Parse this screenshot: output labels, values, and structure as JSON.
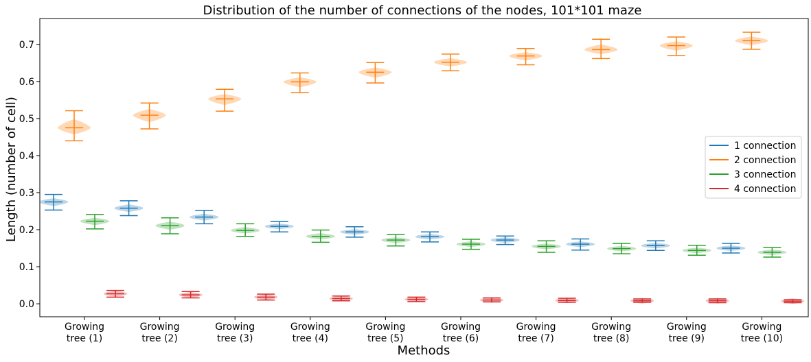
{
  "chart_data": {
    "type": "violin",
    "title": "Distribution of the number of connections of the nodes, 101*101 maze",
    "xlabel": "Methods",
    "ylabel": "Length (number of cell)",
    "ylim": [
      -0.035,
      0.77
    ],
    "yticks": [
      0.0,
      0.1,
      0.2,
      0.3,
      0.4,
      0.5,
      0.6,
      0.7
    ],
    "categories": [
      [
        "Growing",
        "tree (1)"
      ],
      [
        "Growing",
        "tree (2)"
      ],
      [
        "Growing",
        "tree (3)"
      ],
      [
        "Growing",
        "tree (4)"
      ],
      [
        "Growing",
        "tree (5)"
      ],
      [
        "Growing",
        "tree (6)"
      ],
      [
        "Growing",
        "tree (7)"
      ],
      [
        "Growing",
        "tree (8)"
      ],
      [
        "Growing",
        "tree (9)"
      ],
      [
        "Growing",
        "tree (10)"
      ]
    ],
    "legend_position": "center-right",
    "series": [
      {
        "name": "1 connection",
        "color": "#1f77b4",
        "median": [
          0.275,
          0.258,
          0.234,
          0.209,
          0.194,
          0.181,
          0.172,
          0.161,
          0.157,
          0.15
        ],
        "min": [
          0.253,
          0.238,
          0.216,
          0.194,
          0.18,
          0.167,
          0.16,
          0.145,
          0.144,
          0.137
        ],
        "max": [
          0.295,
          0.278,
          0.252,
          0.222,
          0.208,
          0.194,
          0.183,
          0.175,
          0.17,
          0.163
        ]
      },
      {
        "name": "2 connection",
        "color": "#ff7f0e",
        "median": [
          0.475,
          0.509,
          0.553,
          0.599,
          0.625,
          0.652,
          0.669,
          0.686,
          0.697,
          0.71
        ],
        "min": [
          0.44,
          0.472,
          0.52,
          0.57,
          0.596,
          0.629,
          0.645,
          0.662,
          0.67,
          0.687
        ],
        "max": [
          0.521,
          0.542,
          0.579,
          0.623,
          0.651,
          0.674,
          0.689,
          0.714,
          0.72,
          0.733
        ]
      },
      {
        "name": "3 connection",
        "color": "#2ca02c",
        "median": [
          0.223,
          0.211,
          0.198,
          0.182,
          0.172,
          0.161,
          0.155,
          0.149,
          0.144,
          0.139
        ],
        "min": [
          0.202,
          0.189,
          0.182,
          0.166,
          0.156,
          0.147,
          0.139,
          0.135,
          0.131,
          0.126
        ],
        "max": [
          0.241,
          0.232,
          0.216,
          0.199,
          0.187,
          0.174,
          0.17,
          0.163,
          0.158,
          0.152
        ]
      },
      {
        "name": "4 connection",
        "color": "#d62728",
        "median": [
          0.027,
          0.024,
          0.018,
          0.014,
          0.012,
          0.01,
          0.009,
          0.008,
          0.008,
          0.007
        ],
        "min": [
          0.018,
          0.016,
          0.01,
          0.008,
          0.006,
          0.005,
          0.004,
          0.004,
          0.003,
          0.003
        ],
        "max": [
          0.036,
          0.033,
          0.026,
          0.021,
          0.018,
          0.016,
          0.015,
          0.013,
          0.013,
          0.011
        ]
      }
    ]
  }
}
